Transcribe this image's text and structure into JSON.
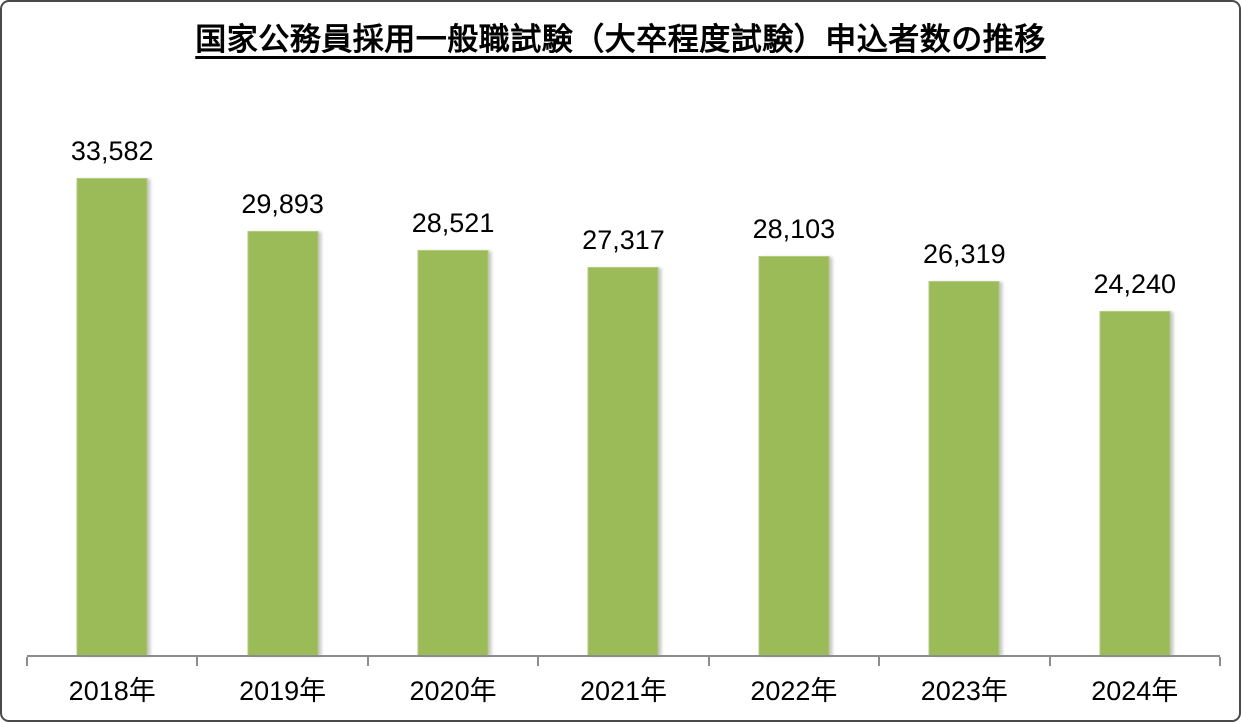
{
  "title": "国家公務員採用一般職試験（大卒程度試験）申込者数の推移",
  "chart_data": {
    "type": "bar",
    "title": "国家公務員採用一般職試験（大卒程度試験）申込者数の推移",
    "categories": [
      "2018年",
      "2019年",
      "2020年",
      "2021年",
      "2022年",
      "2023年",
      "2024年"
    ],
    "values": [
      33582,
      29893,
      28521,
      27317,
      28103,
      26319,
      24240
    ],
    "value_labels": [
      "33,582",
      "29,893",
      "28,521",
      "27,317",
      "28,103",
      "26,319",
      "24,240"
    ],
    "xlabel": "",
    "ylabel": "",
    "ylim": [
      0,
      40000
    ],
    "grid": false,
    "legend": false,
    "bar_color": "#9BBB59",
    "bar_border_color": "#b3ca80",
    "axis_color": "#8c8c8c",
    "label_color": "#000000"
  }
}
